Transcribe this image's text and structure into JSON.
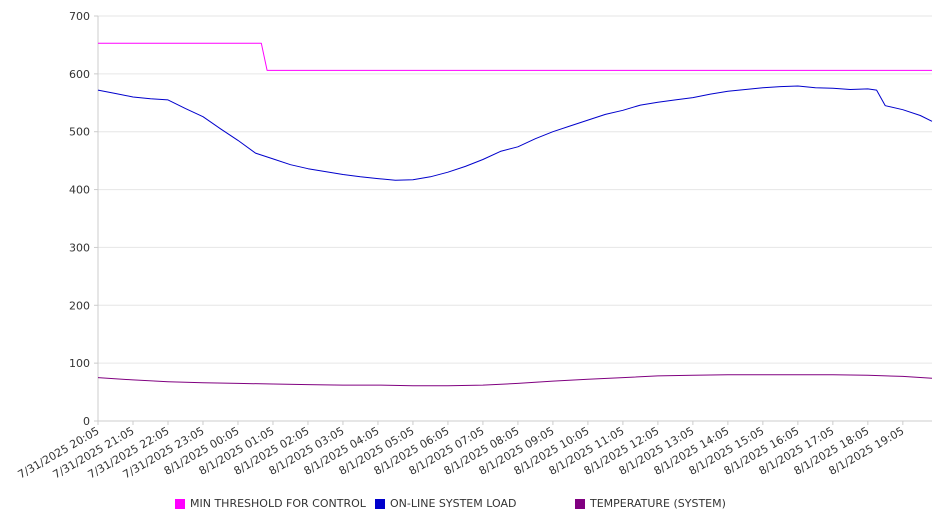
{
  "chart_data": {
    "type": "line",
    "title": "",
    "xlabel": "",
    "ylabel": "",
    "ylim": [
      0,
      700
    ],
    "yticks": [
      0,
      100,
      200,
      300,
      400,
      500,
      600,
      700
    ],
    "xticks": [
      "7/31/2025 20:05",
      "7/31/2025 21:05",
      "7/31/2025 22:05",
      "7/31/2025 23:05",
      "8/1/2025 00:05",
      "8/1/2025 01:05",
      "8/1/2025 02:05",
      "8/1/2025 03:05",
      "8/1/2025 04:05",
      "8/1/2025 05:05",
      "8/1/2025 06:05",
      "8/1/2025 07:05",
      "8/1/2025 08:05",
      "8/1/2025 09:05",
      "8/1/2025 10:05",
      "8/1/2025 11:05",
      "8/1/2025 12:05",
      "8/1/2025 13:05",
      "8/1/2025 14:05",
      "8/1/2025 15:05",
      "8/1/2025 16:05",
      "8/1/2025 17:05",
      "8/1/2025 18:05",
      "8/1/2025 19:05"
    ],
    "xrange": [
      "7/31/2025 20:05",
      "8/1/2025 19:55"
    ],
    "grid": "horizontal",
    "legend_position": "bottom",
    "series": [
      {
        "name": "MIN THRESHOLD FOR CONTROL",
        "color": "#ff00ff",
        "x": [
          "7/31/2025 20:05",
          "8/1/2025 00:45",
          "8/1/2025 00:55",
          "8/1/2025 19:55"
        ],
        "y": [
          653,
          653,
          606,
          606
        ]
      },
      {
        "name": "ON-LINE SYSTEM LOAD",
        "color": "#0000cc",
        "x": [
          "7/31/2025 20:05",
          "7/31/2025 20:35",
          "7/31/2025 21:05",
          "7/31/2025 21:35",
          "7/31/2025 22:05",
          "7/31/2025 22:35",
          "7/31/2025 23:05",
          "7/31/2025 23:35",
          "8/1/2025 00:05",
          "8/1/2025 00:35",
          "8/1/2025 01:05",
          "8/1/2025 01:35",
          "8/1/2025 02:05",
          "8/1/2025 02:35",
          "8/1/2025 03:05",
          "8/1/2025 03:35",
          "8/1/2025 04:05",
          "8/1/2025 04:35",
          "8/1/2025 05:05",
          "8/1/2025 05:35",
          "8/1/2025 06:05",
          "8/1/2025 06:35",
          "8/1/2025 07:05",
          "8/1/2025 07:35",
          "8/1/2025 08:05",
          "8/1/2025 08:35",
          "8/1/2025 09:05",
          "8/1/2025 09:35",
          "8/1/2025 10:05",
          "8/1/2025 10:35",
          "8/1/2025 11:05",
          "8/1/2025 11:35",
          "8/1/2025 12:05",
          "8/1/2025 12:35",
          "8/1/2025 13:05",
          "8/1/2025 13:35",
          "8/1/2025 14:05",
          "8/1/2025 14:35",
          "8/1/2025 15:05",
          "8/1/2025 15:35",
          "8/1/2025 16:05",
          "8/1/2025 16:35",
          "8/1/2025 17:05",
          "8/1/2025 17:35",
          "8/1/2025 18:05",
          "8/1/2025 18:20",
          "8/1/2025 18:35",
          "8/1/2025 19:05",
          "8/1/2025 19:35",
          "8/1/2025 19:55"
        ],
        "y": [
          572,
          566,
          560,
          557,
          555,
          540,
          526,
          505,
          485,
          463,
          453,
          443,
          436,
          431,
          426,
          422,
          419,
          416,
          417,
          422,
          430,
          440,
          452,
          466,
          474,
          488,
          500,
          510,
          520,
          530,
          537,
          546,
          551,
          555,
          559,
          565,
          570,
          573,
          576,
          578,
          579,
          576,
          575,
          573,
          574,
          572,
          545,
          538,
          528,
          518
        ]
      },
      {
        "name": "TEMPERATURE (SYSTEM)",
        "color": "#800080",
        "x": [
          "7/31/2025 20:05",
          "7/31/2025 21:05",
          "7/31/2025 22:05",
          "7/31/2025 23:05",
          "8/1/2025 00:05",
          "8/1/2025 01:05",
          "8/1/2025 02:05",
          "8/1/2025 03:05",
          "8/1/2025 04:05",
          "8/1/2025 05:05",
          "8/1/2025 06:05",
          "8/1/2025 07:05",
          "8/1/2025 08:05",
          "8/1/2025 09:05",
          "8/1/2025 10:05",
          "8/1/2025 11:05",
          "8/1/2025 12:05",
          "8/1/2025 13:05",
          "8/1/2025 14:05",
          "8/1/2025 15:05",
          "8/1/2025 16:05",
          "8/1/2025 17:05",
          "8/1/2025 18:05",
          "8/1/2025 19:05",
          "8/1/2025 19:55"
        ],
        "y": [
          75,
          71,
          68,
          66,
          65,
          64,
          63,
          62,
          62,
          61,
          61,
          62,
          65,
          69,
          72,
          75,
          78,
          79,
          80,
          80,
          80,
          80,
          79,
          77,
          74
        ]
      }
    ]
  }
}
